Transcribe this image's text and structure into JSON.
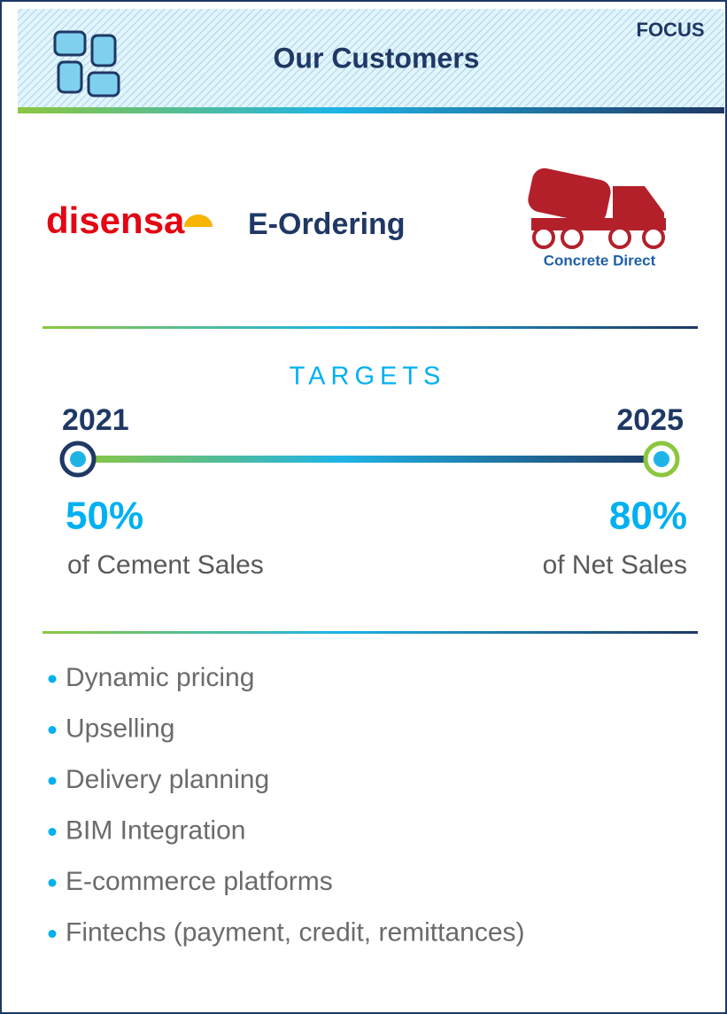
{
  "header": {
    "title": "Our Customers",
    "tag": "FOCUS"
  },
  "logos": {
    "left": "disensa",
    "center": "E-Ordering",
    "right": "Concrete Direct"
  },
  "targets": {
    "heading": "TARGETS",
    "start": {
      "year": "2021",
      "value": "50%",
      "caption": "of Cement Sales"
    },
    "end": {
      "year": "2025",
      "value": "80%",
      "caption": "of Net Sales"
    }
  },
  "bullets": [
    "Dynamic pricing",
    "Upselling",
    "Delivery planning",
    "BIM Integration",
    "E-commerce platforms",
    "Fintechs (payment, credit, remittances)"
  ]
}
